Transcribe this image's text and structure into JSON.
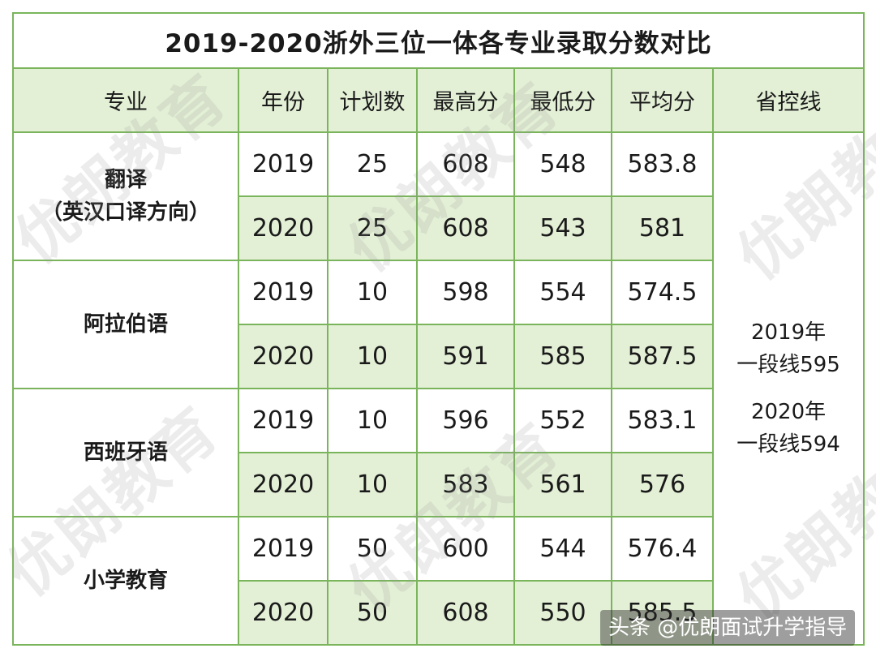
{
  "title": "2019-2020浙外三位一体各专业录取分数对比",
  "headers": {
    "major": "专业",
    "year": "年份",
    "plan": "计划数",
    "max": "最高分",
    "min": "最低分",
    "avg": "平均分",
    "control": "省控线"
  },
  "groups": [
    {
      "major_line1": "翻译",
      "major_line2": "（英汉口译方向）",
      "rows": [
        {
          "year": "2019",
          "plan": "25",
          "max": "608",
          "min": "548",
          "avg": "583.8"
        },
        {
          "year": "2020",
          "plan": "25",
          "max": "608",
          "min": "543",
          "avg": "581"
        }
      ]
    },
    {
      "major_line1": "阿拉伯语",
      "rows": [
        {
          "year": "2019",
          "plan": "10",
          "max": "598",
          "min": "554",
          "avg": "574.5"
        },
        {
          "year": "2020",
          "plan": "10",
          "max": "591",
          "min": "585",
          "avg": "587.5"
        }
      ]
    },
    {
      "major_line1": "西班牙语",
      "rows": [
        {
          "year": "2019",
          "plan": "10",
          "max": "596",
          "min": "552",
          "avg": "583.1"
        },
        {
          "year": "2020",
          "plan": "10",
          "max": "583",
          "min": "561",
          "avg": "576"
        }
      ]
    },
    {
      "major_line1": "小学教育",
      "rows": [
        {
          "year": "2019",
          "plan": "50",
          "max": "600",
          "min": "544",
          "avg": "576.4"
        },
        {
          "year": "2020",
          "plan": "50",
          "max": "608",
          "min": "550",
          "avg": "585.5"
        }
      ]
    }
  ],
  "control_line": {
    "y2019_year": "2019年",
    "y2019_line": "一段线595",
    "y2020_year": "2020年",
    "y2020_line": "一段线594"
  },
  "watermark": "优朗教育",
  "credit": "头条 @优朗面试升学指导"
}
